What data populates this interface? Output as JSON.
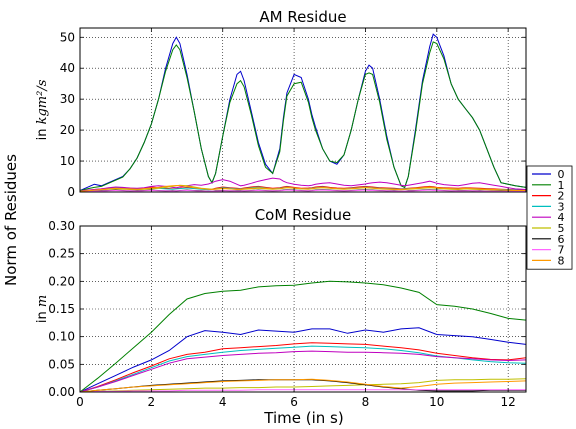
{
  "figure": {
    "shared_ylabel": "Norm of Residues",
    "xlabel": "Time (in s)"
  },
  "chart_data": [
    {
      "type": "line",
      "title": "AM Residue",
      "ylabel_prefix": "in ",
      "ylabel_math": "kgm²/s",
      "xlim": [
        0,
        12.5
      ],
      "ylim": [
        0,
        53
      ],
      "xticks": [
        0,
        2,
        4,
        6,
        8,
        10,
        12
      ],
      "yticks": [
        0,
        10,
        20,
        30,
        40,
        50
      ],
      "grid": true,
      "x": [
        0,
        0.2,
        0.4,
        0.6,
        0.8,
        1.0,
        1.2,
        1.4,
        1.6,
        1.8,
        2.0,
        2.2,
        2.4,
        2.6,
        2.7,
        2.8,
        3.0,
        3.2,
        3.4,
        3.6,
        3.7,
        3.8,
        4.0,
        4.2,
        4.4,
        4.5,
        4.6,
        4.8,
        5.0,
        5.2,
        5.4,
        5.6,
        5.7,
        5.8,
        6.0,
        6.2,
        6.4,
        6.5,
        6.6,
        6.8,
        7.0,
        7.2,
        7.4,
        7.6,
        7.8,
        8.0,
        8.1,
        8.2,
        8.4,
        8.6,
        8.8,
        9.0,
        9.1,
        9.2,
        9.4,
        9.6,
        9.8,
        9.9,
        10.0,
        10.2,
        10.4,
        10.6,
        10.8,
        11.0,
        11.2,
        11.4,
        11.6,
        11.8,
        12.0,
        12.2,
        12.5
      ],
      "series": [
        {
          "name": "0",
          "color": "#0000cc",
          "values": [
            0.5,
            1.5,
            2.5,
            2.0,
            3.0,
            4.0,
            5.0,
            7.5,
            11,
            16,
            22,
            30,
            40,
            48,
            50,
            48,
            38,
            26,
            14,
            5,
            3,
            6,
            18,
            30,
            38,
            39,
            36,
            26,
            16,
            9,
            6,
            14,
            24,
            32,
            38,
            37,
            30,
            25,
            21,
            14,
            10,
            9,
            12,
            20,
            30,
            39,
            41,
            40,
            30,
            18,
            8,
            2,
            1.5,
            5,
            20,
            36,
            47,
            51,
            50,
            44,
            35,
            30,
            27,
            24,
            20,
            14,
            8,
            3,
            2.5,
            2.0,
            1.5
          ]
        },
        {
          "name": "1",
          "color": "#008000",
          "values": [
            0.4,
            1.0,
            1.5,
            1.8,
            2.8,
            3.8,
            4.8,
            7.5,
            11,
            16,
            22,
            30,
            39,
            46,
            47.5,
            46,
            37,
            26,
            14,
            5,
            3,
            6,
            18,
            29,
            35,
            36,
            34,
            25,
            15,
            8,
            6,
            13,
            23,
            31,
            35,
            35.5,
            29,
            24,
            20,
            14,
            10,
            9.5,
            12,
            20,
            30,
            38,
            38.5,
            38,
            29,
            17,
            8,
            2,
            1.5,
            5,
            19,
            35,
            45,
            48.5,
            48,
            43,
            35,
            30,
            27,
            24,
            20,
            14,
            8,
            3,
            2.5,
            2.0,
            1.5
          ]
        },
        {
          "name": "2",
          "color": "#ff0000",
          "values": [
            0.3,
            0.5,
            0.8,
            1.0,
            1.2,
            1.5,
            1.4,
            1.2,
            1.0,
            1.3,
            1.6,
            1.4,
            1.2,
            1.0,
            1.1,
            1.2,
            1.5,
            1.3,
            1.0,
            0.8,
            0.9,
            1.2,
            1.6,
            1.4,
            1.2,
            1.1,
            1.3,
            1.6,
            1.8,
            1.5,
            1.2,
            1.4,
            1.6,
            1.8,
            1.5,
            1.2,
            1.3,
            1.4,
            1.6,
            1.8,
            1.5,
            1.3,
            1.2,
            1.4,
            1.6,
            1.8,
            1.7,
            1.6,
            1.4,
            1.3,
            1.2,
            1.0,
            1.1,
            1.2,
            1.4,
            1.6,
            1.8,
            1.7,
            1.5,
            1.4,
            1.3,
            1.2,
            1.4,
            1.3,
            1.2,
            1.1,
            1.0,
            0.9,
            0.8,
            0.7,
            0.6
          ]
        },
        {
          "name": "3",
          "color": "#00bfbf",
          "values": [
            0.2,
            0.4,
            0.6,
            0.9,
            1.1,
            1.3,
            1.2,
            1.0,
            0.9,
            1.1,
            1.3,
            1.2,
            1.0,
            0.9,
            1.0,
            1.1,
            1.3,
            1.1,
            0.9,
            0.7,
            0.8,
            1.0,
            1.4,
            1.2,
            1.0,
            1.0,
            1.1,
            1.4,
            1.6,
            1.3,
            1.0,
            1.2,
            1.4,
            1.6,
            1.3,
            1.0,
            1.1,
            1.2,
            1.4,
            1.6,
            1.3,
            1.1,
            1.0,
            1.2,
            1.4,
            1.6,
            1.5,
            1.4,
            1.2,
            1.1,
            1.0,
            0.9,
            1.0,
            1.1,
            1.2,
            1.4,
            1.6,
            1.5,
            1.3,
            1.2,
            1.1,
            1.0,
            1.2,
            1.1,
            1.0,
            0.9,
            0.8,
            0.8,
            0.7,
            0.6,
            0.5
          ]
        },
        {
          "name": "4",
          "color": "#bf00bf",
          "values": [
            0.3,
            0.6,
            0.8,
            1.0,
            1.4,
            1.6,
            1.5,
            1.3,
            1.2,
            1.4,
            1.8,
            2.0,
            1.8,
            1.5,
            1.4,
            1.6,
            2.0,
            2.4,
            2.2,
            2.6,
            3.0,
            3.5,
            4.0,
            3.5,
            2.5,
            2.0,
            2.2,
            2.8,
            3.5,
            4.0,
            4.5,
            4.2,
            3.5,
            3.0,
            2.5,
            2.2,
            2.0,
            2.2,
            2.5,
            2.8,
            3.0,
            2.6,
            2.2,
            2.0,
            2.3,
            2.6,
            2.8,
            3.0,
            3.2,
            3.0,
            2.6,
            2.2,
            2.0,
            2.2,
            2.6,
            3.0,
            3.5,
            3.2,
            2.8,
            2.4,
            2.2,
            2.0,
            2.4,
            2.8,
            3.0,
            2.6,
            2.2,
            1.8,
            1.4,
            1.0,
            0.8
          ]
        },
        {
          "name": "5",
          "color": "#bfbf00",
          "values": [
            0.2,
            0.3,
            0.5,
            0.7,
            0.9,
            1.0,
            0.9,
            0.8,
            0.7,
            0.9,
            1.0,
            1.2,
            1.5,
            1.8,
            2.0,
            2.2,
            2.0,
            1.6,
            1.2,
            1.0,
            0.9,
            1.0,
            1.2,
            1.0,
            0.8,
            0.8,
            0.9,
            1.0,
            1.2,
            1.0,
            0.9,
            1.0,
            1.2,
            1.4,
            1.2,
            1.0,
            0.9,
            1.0,
            1.2,
            1.4,
            1.2,
            1.0,
            0.9,
            1.0,
            1.2,
            1.4,
            1.3,
            1.2,
            1.0,
            0.9,
            0.8,
            0.7,
            0.8,
            0.9,
            1.0,
            1.2,
            1.4,
            1.3,
            1.2,
            1.0,
            0.9,
            0.8,
            1.0,
            0.9,
            0.8,
            0.7,
            0.6,
            0.6,
            0.5,
            0.5,
            0.4
          ]
        },
        {
          "name": "6",
          "color": "#000000",
          "values": [
            0.1,
            0.2,
            0.3,
            0.4,
            0.5,
            0.6,
            0.5,
            0.4,
            0.4,
            0.5,
            0.6,
            0.5,
            0.4,
            0.4,
            0.4,
            0.5,
            0.6,
            0.5,
            0.4,
            0.3,
            0.3,
            0.4,
            0.5,
            0.4,
            0.4,
            0.4,
            0.4,
            0.5,
            0.6,
            0.5,
            0.4,
            0.5,
            0.6,
            0.7,
            0.6,
            0.5,
            0.4,
            0.5,
            0.6,
            0.7,
            0.6,
            0.5,
            0.4,
            0.5,
            0.6,
            0.7,
            0.6,
            0.6,
            0.5,
            0.4,
            0.4,
            0.3,
            0.3,
            0.4,
            0.5,
            0.6,
            0.7,
            0.6,
            0.6,
            0.5,
            0.4,
            0.4,
            0.5,
            0.4,
            0.4,
            0.3,
            0.3,
            0.3,
            0.2,
            0.2,
            0.2
          ]
        },
        {
          "name": "7",
          "color": "#ff66ff",
          "values": [
            0.1,
            0.2,
            0.3,
            0.3,
            0.4,
            0.5,
            0.4,
            0.4,
            0.3,
            0.4,
            0.5,
            0.4,
            0.4,
            0.3,
            0.4,
            0.4,
            0.5,
            0.4,
            0.3,
            0.3,
            0.3,
            0.3,
            0.4,
            0.4,
            0.3,
            0.3,
            0.4,
            0.4,
            0.5,
            0.4,
            0.4,
            0.4,
            0.5,
            0.6,
            0.5,
            0.4,
            0.4,
            0.4,
            0.5,
            0.6,
            0.5,
            0.4,
            0.4,
            0.4,
            0.5,
            0.6,
            0.5,
            0.5,
            0.4,
            0.4,
            0.3,
            0.3,
            0.3,
            0.3,
            0.4,
            0.5,
            0.6,
            0.5,
            0.5,
            0.4,
            0.4,
            0.3,
            0.4,
            0.4,
            0.3,
            0.3,
            0.3,
            0.2,
            0.2,
            0.2,
            0.2
          ]
        },
        {
          "name": "8",
          "color": "#ff9900",
          "values": [
            0.2,
            0.4,
            0.6,
            0.8,
            1.0,
            1.2,
            1.1,
            1.0,
            0.9,
            1.1,
            1.3,
            1.5,
            1.8,
            2.0,
            2.1,
            2.0,
            1.8,
            1.4,
            1.1,
            0.9,
            0.8,
            0.9,
            1.1,
            1.0,
            0.9,
            0.9,
            1.0,
            1.2,
            1.4,
            1.2,
            1.0,
            1.1,
            1.3,
            1.5,
            1.3,
            1.1,
            1.0,
            1.1,
            1.3,
            1.5,
            1.3,
            1.1,
            1.0,
            1.1,
            1.3,
            1.5,
            1.4,
            1.3,
            1.1,
            1.0,
            0.9,
            0.8,
            0.9,
            1.0,
            1.2,
            1.4,
            1.6,
            1.5,
            1.4,
            1.2,
            1.1,
            1.0,
            1.2,
            1.1,
            1.0,
            0.9,
            0.8,
            0.7,
            0.6,
            0.5,
            0.5
          ]
        }
      ]
    },
    {
      "type": "line",
      "title": "CoM Residue",
      "ylabel_prefix": "in ",
      "ylabel_math": "m",
      "xlim": [
        0,
        12.5
      ],
      "ylim": [
        0,
        0.3
      ],
      "xticks": [
        0,
        2,
        4,
        6,
        8,
        10,
        12
      ],
      "yticks": [
        "0.00",
        "0.05",
        "0.10",
        "0.15",
        "0.20",
        "0.25",
        "0.30"
      ],
      "grid": true,
      "x": [
        0,
        0.5,
        1.0,
        1.5,
        2.0,
        2.5,
        3.0,
        3.5,
        4.0,
        4.5,
        5.0,
        5.5,
        6.0,
        6.5,
        7.0,
        7.5,
        8.0,
        8.5,
        9.0,
        9.5,
        10.0,
        10.5,
        11.0,
        11.5,
        12.0,
        12.5
      ],
      "series": [
        {
          "name": "0",
          "color": "#0000cc",
          "values": [
            0.0,
            0.015,
            0.03,
            0.045,
            0.058,
            0.075,
            0.1,
            0.111,
            0.108,
            0.104,
            0.112,
            0.11,
            0.108,
            0.114,
            0.114,
            0.106,
            0.112,
            0.108,
            0.114,
            0.116,
            0.104,
            0.102,
            0.1,
            0.095,
            0.09,
            0.086
          ]
        },
        {
          "name": "1",
          "color": "#008000",
          "values": [
            0.0,
            0.025,
            0.052,
            0.08,
            0.108,
            0.14,
            0.168,
            0.178,
            0.182,
            0.184,
            0.19,
            0.192,
            0.193,
            0.197,
            0.2,
            0.199,
            0.197,
            0.194,
            0.188,
            0.18,
            0.158,
            0.155,
            0.15,
            0.142,
            0.133,
            0.13
          ]
        },
        {
          "name": "2",
          "color": "#ff0000",
          "values": [
            0.0,
            0.01,
            0.022,
            0.035,
            0.047,
            0.06,
            0.068,
            0.072,
            0.078,
            0.08,
            0.082,
            0.084,
            0.087,
            0.089,
            0.088,
            0.087,
            0.086,
            0.083,
            0.08,
            0.076,
            0.07,
            0.066,
            0.062,
            0.059,
            0.058,
            0.062
          ]
        },
        {
          "name": "3",
          "color": "#00bfbf",
          "values": [
            0.0,
            0.009,
            0.02,
            0.032,
            0.044,
            0.056,
            0.064,
            0.068,
            0.072,
            0.075,
            0.077,
            0.079,
            0.081,
            0.083,
            0.082,
            0.081,
            0.08,
            0.078,
            0.075,
            0.071,
            0.065,
            0.062,
            0.058,
            0.055,
            0.053,
            0.052
          ]
        },
        {
          "name": "4",
          "color": "#bf00bf",
          "values": [
            0.0,
            0.009,
            0.019,
            0.03,
            0.041,
            0.052,
            0.06,
            0.063,
            0.066,
            0.068,
            0.07,
            0.071,
            0.073,
            0.074,
            0.073,
            0.072,
            0.072,
            0.071,
            0.07,
            0.068,
            0.064,
            0.062,
            0.06,
            0.058,
            0.057,
            0.058
          ]
        },
        {
          "name": "5",
          "color": "#bfbf00",
          "values": [
            0.0,
            0.001,
            0.002,
            0.003,
            0.004,
            0.005,
            0.006,
            0.007,
            0.007,
            0.008,
            0.008,
            0.009,
            0.009,
            0.01,
            0.011,
            0.012,
            0.013,
            0.014,
            0.015,
            0.017,
            0.021,
            0.022,
            0.022,
            0.023,
            0.023,
            0.024
          ]
        },
        {
          "name": "6",
          "color": "#000000",
          "values": [
            0.0,
            0.003,
            0.006,
            0.009,
            0.012,
            0.014,
            0.016,
            0.018,
            0.02,
            0.021,
            0.022,
            0.022,
            0.022,
            0.022,
            0.02,
            0.017,
            0.013,
            0.009,
            0.006,
            0.003,
            0.002,
            0.002,
            0.002,
            0.003,
            0.003,
            0.003
          ]
        },
        {
          "name": "7",
          "color": "#ff66ff",
          "values": [
            0.0,
            0.001,
            0.001,
            0.002,
            0.002,
            0.002,
            0.003,
            0.003,
            0.003,
            0.003,
            0.004,
            0.004,
            0.004,
            0.004,
            0.004,
            0.004,
            0.004,
            0.004,
            0.004,
            0.004,
            0.004,
            0.004,
            0.004,
            0.004,
            0.004,
            0.004
          ]
        },
        {
          "name": "8",
          "color": "#ff9900",
          "values": [
            0.0,
            0.003,
            0.006,
            0.009,
            0.011,
            0.013,
            0.015,
            0.017,
            0.019,
            0.02,
            0.021,
            0.022,
            0.022,
            0.023,
            0.021,
            0.018,
            0.014,
            0.01,
            0.007,
            0.01,
            0.014,
            0.016,
            0.017,
            0.018,
            0.019,
            0.02
          ]
        }
      ]
    }
  ]
}
